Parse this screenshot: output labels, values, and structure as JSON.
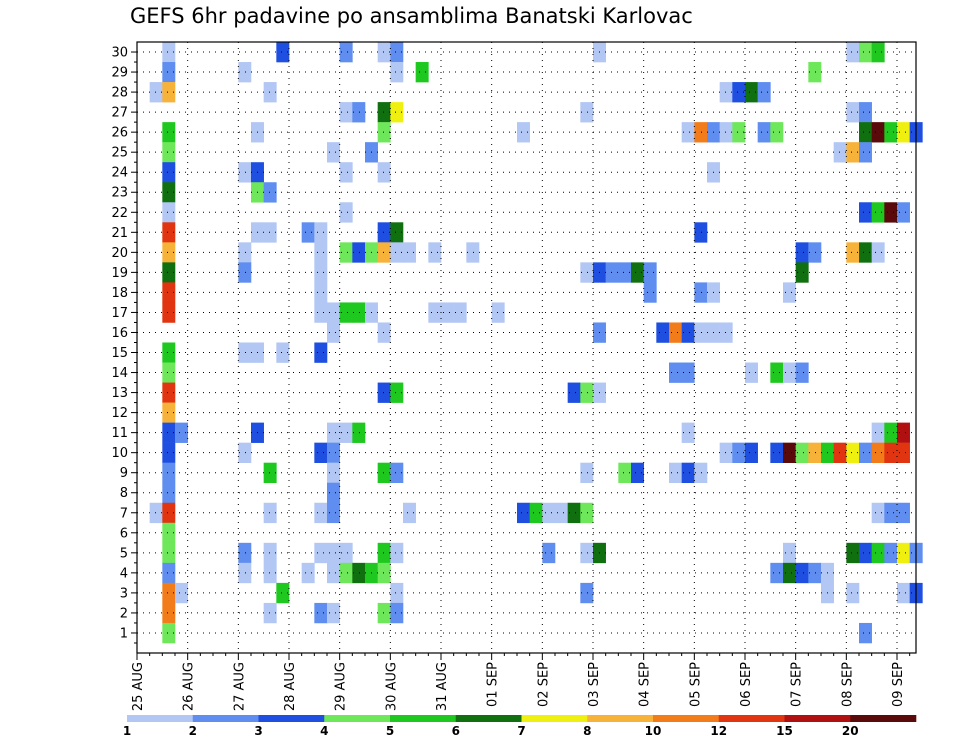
{
  "chart_data": {
    "type": "heatmap",
    "title": "GEFS 6hr padavine po ansamblima Banatski Karlovac",
    "xlabel": "",
    "ylabel": "",
    "x_tick_labels": [
      "25 AUG",
      "26 AUG",
      "27 AUG",
      "28 AUG",
      "29 AUG",
      "30 AUG",
      "31 AUG",
      "01 SEP",
      "02 SEP",
      "03 SEP",
      "04 SEP",
      "05 SEP",
      "06 SEP",
      "07 SEP",
      "08 SEP",
      "09 SEP"
    ],
    "y_tick_labels": [
      "1",
      "2",
      "3",
      "4",
      "5",
      "6",
      "7",
      "8",
      "9",
      "10",
      "11",
      "12",
      "13",
      "14",
      "15",
      "16",
      "17",
      "18",
      "19",
      "20",
      "21",
      "22",
      "23",
      "24",
      "25",
      "26",
      "27",
      "28",
      "29",
      "30"
    ],
    "xlim_days": [
      0,
      15.375
    ],
    "ylim": [
      0,
      30.5
    ],
    "grid": true,
    "colorbar": {
      "labels": [
        "1",
        "2",
        "3",
        "4",
        "5",
        "6",
        "7",
        "8",
        "10",
        "12",
        "15",
        "20"
      ],
      "colors": [
        "#b3c7f4",
        "#5f8ef0",
        "#1f4fe0",
        "#6ee75a",
        "#1ec81e",
        "#107010",
        "#f0f010",
        "#f7b23a",
        "#f27b1a",
        "#e03510",
        "#b01010",
        "#5a0a0a"
      ]
    },
    "cells_description": "Each cell: ensemble member (row), forecast time in days from 25 AUG 00UTC (col_day), precipitation class index into colorbar (cls).",
    "cells": [
      {
        "m": 30,
        "t": 0.5,
        "c": 0
      },
      {
        "m": 30,
        "t": 2.75,
        "c": 2
      },
      {
        "m": 30,
        "t": 4.0,
        "c": 1
      },
      {
        "m": 30,
        "t": 4.75,
        "c": 0
      },
      {
        "m": 30,
        "t": 5.0,
        "c": 1
      },
      {
        "m": 30,
        "t": 9.0,
        "c": 0
      },
      {
        "m": 30,
        "t": 14.0,
        "c": 0
      },
      {
        "m": 30,
        "t": 14.25,
        "c": 3
      },
      {
        "m": 30,
        "t": 14.5,
        "c": 4
      },
      {
        "m": 29,
        "t": 0.5,
        "c": 1
      },
      {
        "m": 29,
        "t": 2.0,
        "c": 0
      },
      {
        "m": 29,
        "t": 5.0,
        "c": 0
      },
      {
        "m": 29,
        "t": 5.5,
        "c": 4
      },
      {
        "m": 29,
        "t": 13.25,
        "c": 3
      },
      {
        "m": 28,
        "t": 0.25,
        "c": 0
      },
      {
        "m": 28,
        "t": 0.5,
        "c": 7
      },
      {
        "m": 28,
        "t": 2.5,
        "c": 0
      },
      {
        "m": 28,
        "t": 11.5,
        "c": 0
      },
      {
        "m": 28,
        "t": 11.75,
        "c": 2
      },
      {
        "m": 28,
        "t": 12.0,
        "c": 5
      },
      {
        "m": 28,
        "t": 12.25,
        "c": 1
      },
      {
        "m": 27,
        "t": 4.0,
        "c": 0
      },
      {
        "m": 27,
        "t": 4.25,
        "c": 1
      },
      {
        "m": 27,
        "t": 4.75,
        "c": 5
      },
      {
        "m": 27,
        "t": 5.0,
        "c": 6
      },
      {
        "m": 27,
        "t": 8.75,
        "c": 0
      },
      {
        "m": 27,
        "t": 14.0,
        "c": 0
      },
      {
        "m": 27,
        "t": 14.25,
        "c": 1
      },
      {
        "m": 26,
        "t": 0.5,
        "c": 4
      },
      {
        "m": 26,
        "t": 2.25,
        "c": 0
      },
      {
        "m": 26,
        "t": 4.75,
        "c": 3
      },
      {
        "m": 26,
        "t": 7.5,
        "c": 0
      },
      {
        "m": 26,
        "t": 10.75,
        "c": 0
      },
      {
        "m": 26,
        "t": 11.0,
        "c": 8
      },
      {
        "m": 26,
        "t": 11.25,
        "c": 1
      },
      {
        "m": 26,
        "t": 11.5,
        "c": 0
      },
      {
        "m": 26,
        "t": 11.75,
        "c": 3
      },
      {
        "m": 26,
        "t": 12.25,
        "c": 1
      },
      {
        "m": 26,
        "t": 12.5,
        "c": 3
      },
      {
        "m": 26,
        "t": 14.25,
        "c": 5
      },
      {
        "m": 26,
        "t": 14.5,
        "c": 11
      },
      {
        "m": 26,
        "t": 14.75,
        "c": 4
      },
      {
        "m": 26,
        "t": 15.0,
        "c": 6
      },
      {
        "m": 26,
        "t": 15.25,
        "c": 2
      },
      {
        "m": 25,
        "t": 0.5,
        "c": 3
      },
      {
        "m": 25,
        "t": 3.75,
        "c": 0
      },
      {
        "m": 25,
        "t": 4.5,
        "c": 1
      },
      {
        "m": 25,
        "t": 13.75,
        "c": 0
      },
      {
        "m": 25,
        "t": 14.0,
        "c": 7
      },
      {
        "m": 25,
        "t": 14.25,
        "c": 1
      },
      {
        "m": 24,
        "t": 0.5,
        "c": 2
      },
      {
        "m": 24,
        "t": 2.0,
        "c": 0
      },
      {
        "m": 24,
        "t": 2.25,
        "c": 2
      },
      {
        "m": 24,
        "t": 4.0,
        "c": 0
      },
      {
        "m": 24,
        "t": 4.75,
        "c": 0
      },
      {
        "m": 24,
        "t": 11.25,
        "c": 0
      },
      {
        "m": 23,
        "t": 0.5,
        "c": 5
      },
      {
        "m": 23,
        "t": 2.25,
        "c": 3
      },
      {
        "m": 23,
        "t": 2.5,
        "c": 1
      },
      {
        "m": 22,
        "t": 0.5,
        "c": 0
      },
      {
        "m": 22,
        "t": 4.0,
        "c": 0
      },
      {
        "m": 22,
        "t": 14.25,
        "c": 2
      },
      {
        "m": 22,
        "t": 14.5,
        "c": 4
      },
      {
        "m": 22,
        "t": 14.75,
        "c": 11
      },
      {
        "m": 22,
        "t": 15.0,
        "c": 1
      },
      {
        "m": 21,
        "t": 0.5,
        "c": 9
      },
      {
        "m": 21,
        "t": 2.25,
        "c": 0
      },
      {
        "m": 21,
        "t": 2.5,
        "c": 0
      },
      {
        "m": 21,
        "t": 3.25,
        "c": 1
      },
      {
        "m": 21,
        "t": 3.5,
        "c": 0
      },
      {
        "m": 21,
        "t": 4.75,
        "c": 2
      },
      {
        "m": 21,
        "t": 5.0,
        "c": 5
      },
      {
        "m": 21,
        "t": 11.0,
        "c": 2
      },
      {
        "m": 20,
        "t": 0.5,
        "c": 7
      },
      {
        "m": 20,
        "t": 2.0,
        "c": 0
      },
      {
        "m": 20,
        "t": 3.5,
        "c": 0
      },
      {
        "m": 20,
        "t": 4.0,
        "c": 3
      },
      {
        "m": 20,
        "t": 4.25,
        "c": 2
      },
      {
        "m": 20,
        "t": 4.5,
        "c": 3
      },
      {
        "m": 20,
        "t": 4.75,
        "c": 7
      },
      {
        "m": 20,
        "t": 5.0,
        "c": 0
      },
      {
        "m": 20,
        "t": 5.25,
        "c": 0
      },
      {
        "m": 20,
        "t": 5.75,
        "c": 0
      },
      {
        "m": 20,
        "t": 6.5,
        "c": 0
      },
      {
        "m": 20,
        "t": 13.0,
        "c": 2
      },
      {
        "m": 20,
        "t": 13.25,
        "c": 1
      },
      {
        "m": 20,
        "t": 14.0,
        "c": 7
      },
      {
        "m": 20,
        "t": 14.25,
        "c": 5
      },
      {
        "m": 20,
        "t": 14.5,
        "c": 0
      },
      {
        "m": 19,
        "t": 0.5,
        "c": 5
      },
      {
        "m": 19,
        "t": 2.0,
        "c": 1
      },
      {
        "m": 19,
        "t": 3.5,
        "c": 0
      },
      {
        "m": 19,
        "t": 8.75,
        "c": 0
      },
      {
        "m": 19,
        "t": 9.0,
        "c": 2
      },
      {
        "m": 19,
        "t": 9.25,
        "c": 1
      },
      {
        "m": 19,
        "t": 9.5,
        "c": 1
      },
      {
        "m": 19,
        "t": 9.75,
        "c": 5
      },
      {
        "m": 19,
        "t": 10.0,
        "c": 1
      },
      {
        "m": 19,
        "t": 13.0,
        "c": 5
      },
      {
        "m": 18,
        "t": 0.5,
        "c": 9
      },
      {
        "m": 18,
        "t": 3.5,
        "c": 0
      },
      {
        "m": 18,
        "t": 10.0,
        "c": 1
      },
      {
        "m": 18,
        "t": 11.0,
        "c": 1
      },
      {
        "m": 18,
        "t": 11.25,
        "c": 0
      },
      {
        "m": 18,
        "t": 12.75,
        "c": 0
      },
      {
        "m": 17,
        "t": 0.5,
        "c": 9
      },
      {
        "m": 17,
        "t": 3.5,
        "c": 0
      },
      {
        "m": 17,
        "t": 3.75,
        "c": 0
      },
      {
        "m": 17,
        "t": 4.0,
        "c": 4
      },
      {
        "m": 17,
        "t": 4.25,
        "c": 4
      },
      {
        "m": 17,
        "t": 4.5,
        "c": 0
      },
      {
        "m": 17,
        "t": 5.75,
        "c": 0
      },
      {
        "m": 17,
        "t": 6.0,
        "c": 0
      },
      {
        "m": 17,
        "t": 6.25,
        "c": 0
      },
      {
        "m": 17,
        "t": 7.0,
        "c": 0
      },
      {
        "m": 16,
        "t": 3.75,
        "c": 0
      },
      {
        "m": 16,
        "t": 4.75,
        "c": 0
      },
      {
        "m": 16,
        "t": 9.0,
        "c": 1
      },
      {
        "m": 16,
        "t": 10.25,
        "c": 2
      },
      {
        "m": 16,
        "t": 10.5,
        "c": 8
      },
      {
        "m": 16,
        "t": 10.75,
        "c": 2
      },
      {
        "m": 16,
        "t": 11.0,
        "c": 0
      },
      {
        "m": 16,
        "t": 11.25,
        "c": 0
      },
      {
        "m": 16,
        "t": 11.5,
        "c": 0
      },
      {
        "m": 15,
        "t": 0.5,
        "c": 4
      },
      {
        "m": 15,
        "t": 2.0,
        "c": 0
      },
      {
        "m": 15,
        "t": 2.25,
        "c": 0
      },
      {
        "m": 15,
        "t": 2.75,
        "c": 0
      },
      {
        "m": 15,
        "t": 3.5,
        "c": 2
      },
      {
        "m": 14,
        "t": 0.5,
        "c": 3
      },
      {
        "m": 14,
        "t": 10.5,
        "c": 1
      },
      {
        "m": 14,
        "t": 10.75,
        "c": 1
      },
      {
        "m": 14,
        "t": 12.0,
        "c": 0
      },
      {
        "m": 14,
        "t": 12.5,
        "c": 4
      },
      {
        "m": 14,
        "t": 12.75,
        "c": 0
      },
      {
        "m": 14,
        "t": 13.0,
        "c": 1
      },
      {
        "m": 13,
        "t": 0.5,
        "c": 9
      },
      {
        "m": 13,
        "t": 4.75,
        "c": 2
      },
      {
        "m": 13,
        "t": 5.0,
        "c": 4
      },
      {
        "m": 13,
        "t": 8.5,
        "c": 2
      },
      {
        "m": 13,
        "t": 8.75,
        "c": 3
      },
      {
        "m": 13,
        "t": 9.0,
        "c": 0
      },
      {
        "m": 12,
        "t": 0.5,
        "c": 7
      },
      {
        "m": 11,
        "t": 0.5,
        "c": 2
      },
      {
        "m": 11,
        "t": 0.75,
        "c": 1
      },
      {
        "m": 11,
        "t": 2.25,
        "c": 2
      },
      {
        "m": 11,
        "t": 3.75,
        "c": 0
      },
      {
        "m": 11,
        "t": 4.0,
        "c": 0
      },
      {
        "m": 11,
        "t": 4.25,
        "c": 4
      },
      {
        "m": 11,
        "t": 10.75,
        "c": 0
      },
      {
        "m": 11,
        "t": 14.5,
        "c": 0
      },
      {
        "m": 11,
        "t": 14.75,
        "c": 4
      },
      {
        "m": 11,
        "t": 15.0,
        "c": 10
      },
      {
        "m": 10,
        "t": 0.5,
        "c": 2
      },
      {
        "m": 10,
        "t": 2.0,
        "c": 0
      },
      {
        "m": 10,
        "t": 3.5,
        "c": 2
      },
      {
        "m": 10,
        "t": 3.75,
        "c": 1
      },
      {
        "m": 10,
        "t": 11.5,
        "c": 0
      },
      {
        "m": 10,
        "t": 11.75,
        "c": 1
      },
      {
        "m": 10,
        "t": 12.0,
        "c": 2
      },
      {
        "m": 10,
        "t": 12.5,
        "c": 2
      },
      {
        "m": 10,
        "t": 12.75,
        "c": 11
      },
      {
        "m": 10,
        "t": 13.0,
        "c": 3
      },
      {
        "m": 10,
        "t": 13.25,
        "c": 7
      },
      {
        "m": 10,
        "t": 13.5,
        "c": 4
      },
      {
        "m": 10,
        "t": 13.75,
        "c": 9
      },
      {
        "m": 10,
        "t": 14.0,
        "c": 6
      },
      {
        "m": 10,
        "t": 14.25,
        "c": 1
      },
      {
        "m": 10,
        "t": 14.5,
        "c": 8
      },
      {
        "m": 10,
        "t": 14.75,
        "c": 9
      },
      {
        "m": 10,
        "t": 15.0,
        "c": 9
      },
      {
        "m": 9,
        "t": 0.5,
        "c": 1
      },
      {
        "m": 9,
        "t": 2.5,
        "c": 4
      },
      {
        "m": 9,
        "t": 3.75,
        "c": 0
      },
      {
        "m": 9,
        "t": 4.75,
        "c": 4
      },
      {
        "m": 9,
        "t": 5.0,
        "c": 1
      },
      {
        "m": 9,
        "t": 8.75,
        "c": 0
      },
      {
        "m": 9,
        "t": 9.5,
        "c": 3
      },
      {
        "m": 9,
        "t": 9.75,
        "c": 2
      },
      {
        "m": 9,
        "t": 10.5,
        "c": 0
      },
      {
        "m": 9,
        "t": 10.75,
        "c": 2
      },
      {
        "m": 9,
        "t": 11.0,
        "c": 0
      },
      {
        "m": 8,
        "t": 0.5,
        "c": 1
      },
      {
        "m": 8,
        "t": 3.75,
        "c": 1
      },
      {
        "m": 7,
        "t": 0.25,
        "c": 0
      },
      {
        "m": 7,
        "t": 0.5,
        "c": 9
      },
      {
        "m": 7,
        "t": 2.5,
        "c": 0
      },
      {
        "m": 7,
        "t": 3.5,
        "c": 0
      },
      {
        "m": 7,
        "t": 3.75,
        "c": 1
      },
      {
        "m": 7,
        "t": 5.25,
        "c": 0
      },
      {
        "m": 7,
        "t": 7.5,
        "c": 2
      },
      {
        "m": 7,
        "t": 7.75,
        "c": 4
      },
      {
        "m": 7,
        "t": 8.0,
        "c": 0
      },
      {
        "m": 7,
        "t": 8.25,
        "c": 0
      },
      {
        "m": 7,
        "t": 8.5,
        "c": 5
      },
      {
        "m": 7,
        "t": 8.75,
        "c": 3
      },
      {
        "m": 7,
        "t": 14.5,
        "c": 0
      },
      {
        "m": 7,
        "t": 14.75,
        "c": 1
      },
      {
        "m": 7,
        "t": 15.0,
        "c": 1
      },
      {
        "m": 6,
        "t": 0.5,
        "c": 3
      },
      {
        "m": 5,
        "t": 0.5,
        "c": 3
      },
      {
        "m": 5,
        "t": 2.0,
        "c": 1
      },
      {
        "m": 5,
        "t": 2.5,
        "c": 0
      },
      {
        "m": 5,
        "t": 3.5,
        "c": 0
      },
      {
        "m": 5,
        "t": 3.75,
        "c": 0
      },
      {
        "m": 5,
        "t": 4.0,
        "c": 0
      },
      {
        "m": 5,
        "t": 4.75,
        "c": 4
      },
      {
        "m": 5,
        "t": 5.0,
        "c": 0
      },
      {
        "m": 5,
        "t": 8.0,
        "c": 1
      },
      {
        "m": 5,
        "t": 8.75,
        "c": 0
      },
      {
        "m": 5,
        "t": 9.0,
        "c": 5
      },
      {
        "m": 5,
        "t": 12.75,
        "c": 0
      },
      {
        "m": 5,
        "t": 14.0,
        "c": 5
      },
      {
        "m": 5,
        "t": 14.25,
        "c": 2
      },
      {
        "m": 5,
        "t": 14.5,
        "c": 4
      },
      {
        "m": 5,
        "t": 14.75,
        "c": 1
      },
      {
        "m": 5,
        "t": 15.0,
        "c": 6
      },
      {
        "m": 5,
        "t": 15.25,
        "c": 1
      },
      {
        "m": 4,
        "t": 0.5,
        "c": 1
      },
      {
        "m": 4,
        "t": 2.0,
        "c": 0
      },
      {
        "m": 4,
        "t": 2.5,
        "c": 0
      },
      {
        "m": 4,
        "t": 3.25,
        "c": 0
      },
      {
        "m": 4,
        "t": 3.75,
        "c": 0
      },
      {
        "m": 4,
        "t": 4.0,
        "c": 3
      },
      {
        "m": 4,
        "t": 4.25,
        "c": 5
      },
      {
        "m": 4,
        "t": 4.5,
        "c": 4
      },
      {
        "m": 4,
        "t": 4.75,
        "c": 3
      },
      {
        "m": 4,
        "t": 12.5,
        "c": 1
      },
      {
        "m": 4,
        "t": 12.75,
        "c": 5
      },
      {
        "m": 4,
        "t": 13.0,
        "c": 2
      },
      {
        "m": 4,
        "t": 13.25,
        "c": 1
      },
      {
        "m": 4,
        "t": 13.5,
        "c": 0
      },
      {
        "m": 3,
        "t": 0.5,
        "c": 8
      },
      {
        "m": 3,
        "t": 0.75,
        "c": 0
      },
      {
        "m": 3,
        "t": 2.75,
        "c": 4
      },
      {
        "m": 3,
        "t": 5.0,
        "c": 0
      },
      {
        "m": 3,
        "t": 8.75,
        "c": 1
      },
      {
        "m": 3,
        "t": 13.5,
        "c": 0
      },
      {
        "m": 3,
        "t": 14.0,
        "c": 0
      },
      {
        "m": 3,
        "t": 15.0,
        "c": 0
      },
      {
        "m": 3,
        "t": 15.25,
        "c": 2
      },
      {
        "m": 2,
        "t": 0.5,
        "c": 8
      },
      {
        "m": 2,
        "t": 2.5,
        "c": 0
      },
      {
        "m": 2,
        "t": 3.5,
        "c": 1
      },
      {
        "m": 2,
        "t": 3.75,
        "c": 0
      },
      {
        "m": 2,
        "t": 4.75,
        "c": 3
      },
      {
        "m": 2,
        "t": 5.0,
        "c": 1
      },
      {
        "m": 1,
        "t": 0.5,
        "c": 3
      },
      {
        "m": 1,
        "t": 14.25,
        "c": 1
      }
    ]
  }
}
